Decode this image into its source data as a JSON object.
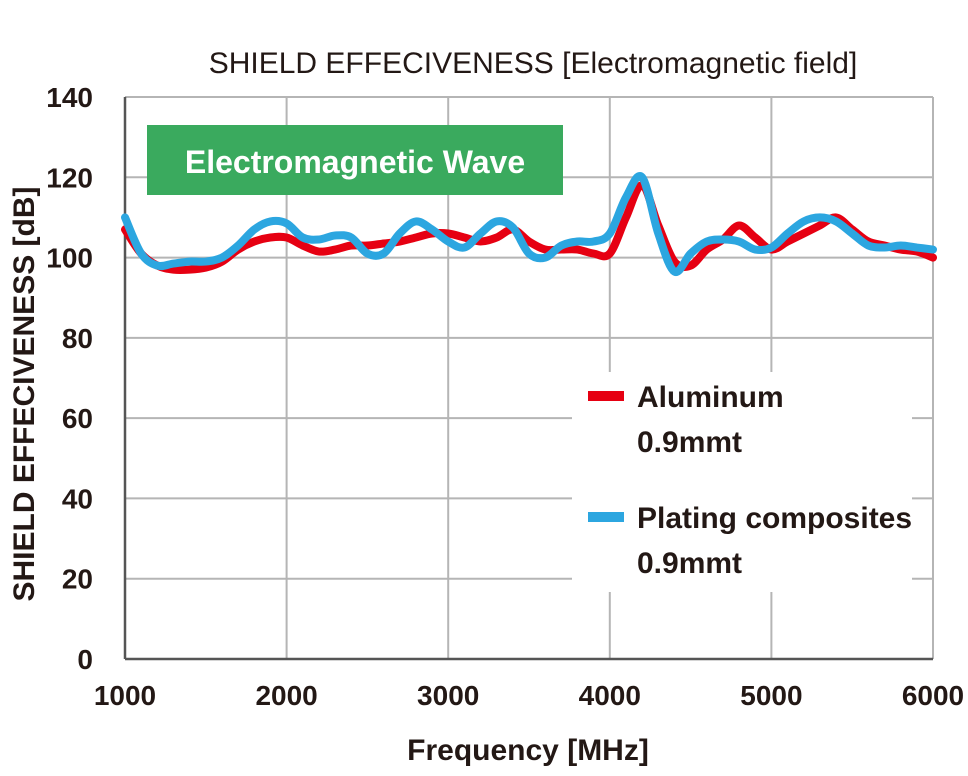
{
  "chart_data": {
    "type": "line",
    "title": "SHIELD EFFECIVENESS [Electromagnetic field]",
    "badge": "Electromagnetic Wave",
    "xlabel": "Frequency [MHz]",
    "ylabel": "SHIELD EFFECIVENESS [dB]",
    "xlim": [
      1000,
      6000
    ],
    "ylim": [
      0,
      140
    ],
    "xticks": [
      1000,
      2000,
      3000,
      4000,
      5000,
      6000
    ],
    "yticks": [
      0,
      20,
      40,
      60,
      80,
      100,
      120,
      140
    ],
    "grid": true,
    "legend_position": "bottom-right",
    "series": [
      {
        "name": "Aluminum",
        "name_line2": "0.9mmt",
        "color": "#e60012",
        "x": [
          1000,
          1100,
          1200,
          1300,
          1400,
          1500,
          1600,
          1700,
          1800,
          1900,
          2000,
          2100,
          2200,
          2300,
          2400,
          2500,
          2600,
          2700,
          2800,
          2900,
          3000,
          3100,
          3200,
          3300,
          3400,
          3500,
          3600,
          3700,
          3800,
          3900,
          4000,
          4100,
          4200,
          4300,
          4400,
          4500,
          4600,
          4700,
          4800,
          4900,
          5000,
          5100,
          5200,
          5300,
          5400,
          5500,
          5600,
          5700,
          5800,
          5900,
          6000
        ],
        "values": [
          107,
          101,
          98,
          97,
          97,
          97.5,
          99,
          102,
          104,
          105,
          105,
          103,
          101.5,
          102,
          103,
          103,
          103.5,
          104,
          105,
          106,
          106,
          105,
          104,
          105,
          107,
          104,
          102,
          102,
          102,
          101,
          101,
          110,
          118,
          108,
          99,
          98,
          102,
          104.5,
          108,
          105,
          102,
          104,
          106,
          108,
          110,
          107,
          104,
          103,
          102,
          101.5,
          100
        ]
      },
      {
        "name": "Plating composites",
        "name_line2": "0.9mmt",
        "color": "#2ca6e0",
        "x": [
          1000,
          1100,
          1200,
          1300,
          1400,
          1500,
          1600,
          1700,
          1800,
          1900,
          2000,
          2100,
          2200,
          2300,
          2400,
          2500,
          2600,
          2700,
          2800,
          2900,
          3000,
          3100,
          3200,
          3300,
          3400,
          3500,
          3600,
          3700,
          3800,
          3900,
          4000,
          4100,
          4200,
          4300,
          4400,
          4500,
          4600,
          4700,
          4800,
          4900,
          5000,
          5100,
          5200,
          5300,
          5400,
          5500,
          5600,
          5700,
          5800,
          5900,
          6000
        ],
        "values": [
          110,
          101,
          98,
          98.5,
          99,
          99,
          100,
          103,
          107,
          109,
          108.5,
          105,
          104.5,
          105.5,
          105,
          101,
          101,
          106,
          109,
          107,
          104,
          102.5,
          106,
          109,
          107.5,
          101,
          100,
          103,
          104,
          104,
          106,
          115,
          120,
          106,
          96.5,
          101,
          104,
          104.5,
          104,
          102,
          102.5,
          106,
          109,
          110,
          109,
          106,
          103,
          102.5,
          103,
          102.5,
          102
        ]
      }
    ]
  }
}
